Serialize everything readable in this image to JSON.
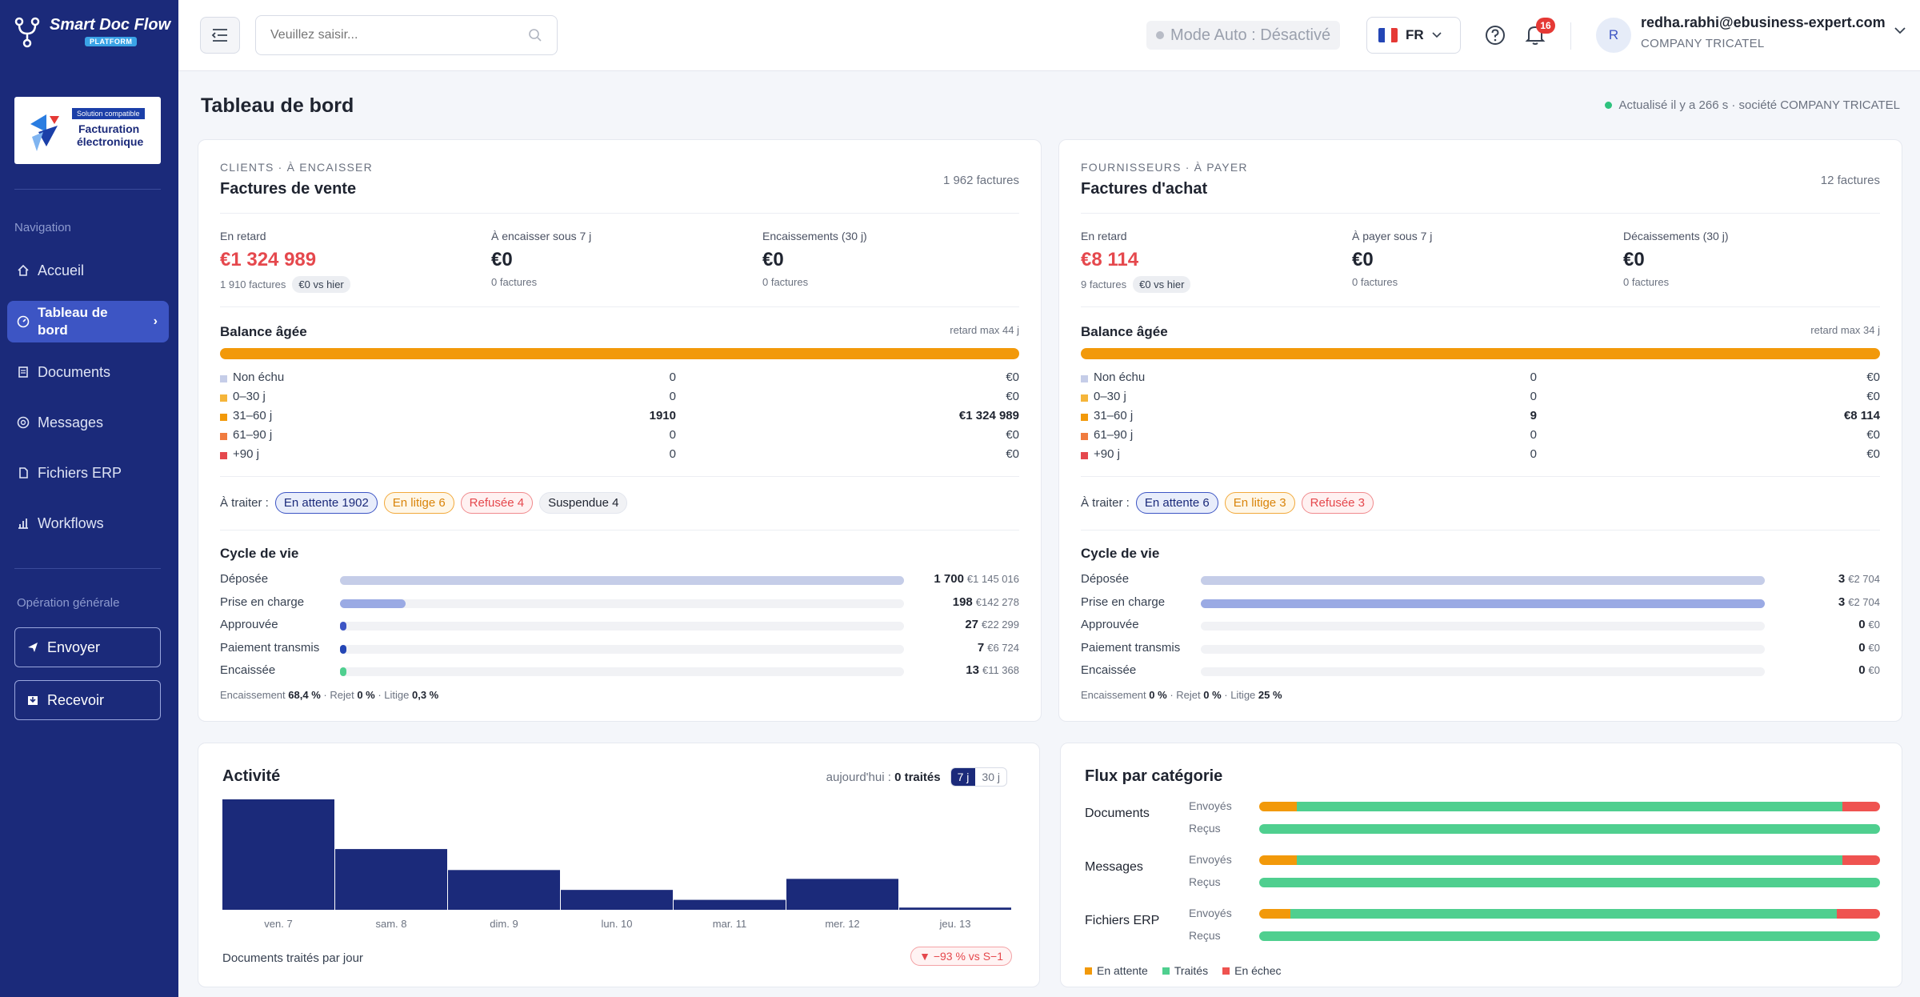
{
  "app": {
    "name": "Smart Doc Flow",
    "badge": "PLATFORM"
  },
  "logo": {
    "tag": "Solution compatible",
    "line1": "Facturation",
    "line2": "électronique"
  },
  "sidebar": {
    "nav_heading": "Navigation",
    "items": [
      {
        "label": "Accueil",
        "icon": "home-icon"
      },
      {
        "label": "Tableau de bord",
        "icon": "dashboard-icon",
        "active": true
      },
      {
        "label": "Documents",
        "icon": "document-icon"
      },
      {
        "label": "Messages",
        "icon": "message-icon"
      },
      {
        "label": "Fichiers ERP",
        "icon": "file-icon"
      },
      {
        "label": "Workflows",
        "icon": "workflow-icon"
      }
    ],
    "ops_heading": "Opération générale",
    "send_label": "Envoyer",
    "receive_label": "Recevoir"
  },
  "topbar": {
    "search_placeholder": "Veuillez saisir...",
    "mode": "Mode Auto : Désactivé",
    "lang": "FR",
    "notifications": "16",
    "avatar_initial": "R",
    "email": "redha.rabhi@ebusiness-expert.com",
    "company": "COMPANY TRICATEL"
  },
  "page": {
    "title": "Tableau de bord",
    "refresh": "Actualisé il y a 266 s · société COMPANY TRICATEL"
  },
  "sales": {
    "kicker": "CLIENTS · À ENCAISSER",
    "title": "Factures de vente",
    "count": "1 962 factures",
    "kpis": [
      {
        "label": "En retard",
        "value": "€1 324 989",
        "sub": "1 910 factures",
        "chip": "€0 vs hier"
      },
      {
        "label": "À encaisser sous 7 j",
        "value": "€0",
        "sub": "0 factures"
      },
      {
        "label": "Encaissements (30 j)",
        "value": "€0",
        "sub": "0 factures"
      }
    ],
    "balance_title": "Balance âgée",
    "balance_sub": "retard max 44 j",
    "aging": [
      {
        "label": "Non échu",
        "count": "0",
        "amount": "€0"
      },
      {
        "label": "0–30 j",
        "count": "0",
        "amount": "€0"
      },
      {
        "label": "31–60 j",
        "count": "1910",
        "amount": "€1 324 989"
      },
      {
        "label": "61–90 j",
        "count": "0",
        "amount": "€0"
      },
      {
        "label": "+90 j",
        "count": "0",
        "amount": "€0"
      }
    ],
    "traiter_label": "À traiter :",
    "chips": [
      "En attente 1902",
      "En litige 6",
      "Refusée 4",
      "Suspendue 4"
    ],
    "cycle_title": "Cycle de vie",
    "cycle": [
      {
        "label": "Déposée",
        "count": "1 700",
        "amount": "€1 145 016",
        "ratio": 1.0
      },
      {
        "label": "Prise en charge",
        "count": "198",
        "amount": "€142 278",
        "ratio": 0.116
      },
      {
        "label": "Approuvée",
        "count": "27",
        "amount": "€22 299",
        "ratio": 0.016
      },
      {
        "label": "Paiement transmis",
        "count": "7",
        "amount": "€6 724",
        "ratio": 0.005
      },
      {
        "label": "Encaissée",
        "count": "13",
        "amount": "€11 368",
        "ratio": 0.008
      }
    ],
    "rates": {
      "l1": "Encaissement",
      "v1": "68,4 %",
      "l2": "· Rejet",
      "v2": "0 %",
      "l3": "· Litige",
      "v3": "0,3 %"
    }
  },
  "purchases": {
    "kicker": "FOURNISSEURS · À PAYER",
    "title": "Factures d'achat",
    "count": "12 factures",
    "kpis": [
      {
        "label": "En retard",
        "value": "€8 114",
        "sub": "9 factures",
        "chip": "€0 vs hier"
      },
      {
        "label": "À payer sous 7 j",
        "value": "€0",
        "sub": "0 factures"
      },
      {
        "label": "Décaissements (30 j)",
        "value": "€0",
        "sub": "0 factures"
      }
    ],
    "balance_title": "Balance âgée",
    "balance_sub": "retard max 34 j",
    "aging": [
      {
        "label": "Non échu",
        "count": "0",
        "amount": "€0"
      },
      {
        "label": "0–30 j",
        "count": "0",
        "amount": "€0"
      },
      {
        "label": "31–60 j",
        "count": "9",
        "amount": "€8 114"
      },
      {
        "label": "61–90 j",
        "count": "0",
        "amount": "€0"
      },
      {
        "label": "+90 j",
        "count": "0",
        "amount": "€0"
      }
    ],
    "traiter_label": "À traiter :",
    "chips": [
      "En attente 6",
      "En litige 3",
      "Refusée 3"
    ],
    "cycle_title": "Cycle de vie",
    "cycle": [
      {
        "label": "Déposée",
        "count": "3",
        "amount": "€2 704",
        "ratio": 1.0
      },
      {
        "label": "Prise en charge",
        "count": "3",
        "amount": "€2 704",
        "ratio": 1.0
      },
      {
        "label": "Approuvée",
        "count": "0",
        "amount": "€0",
        "ratio": 0
      },
      {
        "label": "Paiement transmis",
        "count": "0",
        "amount": "€0",
        "ratio": 0
      },
      {
        "label": "Encaissée",
        "count": "0",
        "amount": "€0",
        "ratio": 0
      }
    ],
    "rates": {
      "l1": "Encaissement",
      "v1": "0 %",
      "l2": "· Rejet",
      "v2": "0 %",
      "l3": "· Litige",
      "v3": "25 %"
    }
  },
  "activity": {
    "title": "Activité",
    "today_label": "aujourd'hui :",
    "today_value": "0 traités",
    "range_7": "7 j",
    "range_30": "30 j",
    "footer": "Documents traités par jour",
    "delta": "▼ −93 % vs S−1"
  },
  "chart_data": {
    "type": "bar",
    "categories": [
      "ven. 7",
      "sam. 8",
      "dim. 9",
      "lun. 10",
      "mar. 11",
      "mer. 12",
      "jeu. 13"
    ],
    "values": [
      100,
      55,
      36,
      18,
      9,
      28,
      2
    ],
    "color": "#1b2a7a"
  },
  "flux": {
    "title": "Flux par catégorie",
    "rows": [
      {
        "category": "Documents",
        "sent": "Envoyés",
        "received": "Reçus",
        "sent_split": [
          6,
          88,
          6
        ],
        "recv_split": [
          0,
          100,
          0
        ]
      },
      {
        "category": "Messages",
        "sent": "Envoyés",
        "received": "Reçus",
        "sent_split": [
          6,
          88,
          6
        ],
        "recv_split": [
          0,
          100,
          0
        ]
      },
      {
        "category": "Fichiers ERP",
        "sent": "Envoyés",
        "received": "Reçus",
        "sent_split": [
          5,
          88,
          7
        ],
        "recv_split": [
          0,
          100,
          0
        ]
      }
    ],
    "legend": [
      "En attente",
      "Traités",
      "En échec"
    ],
    "colors": {
      "pending": "#f2990a",
      "done": "#4fcf8f",
      "fail": "#ef5350"
    }
  },
  "colors": {
    "sidebar": "#1b2a7a",
    "accent": "#3d55c4",
    "danger": "#e5484d",
    "warn": "#f2990a"
  }
}
